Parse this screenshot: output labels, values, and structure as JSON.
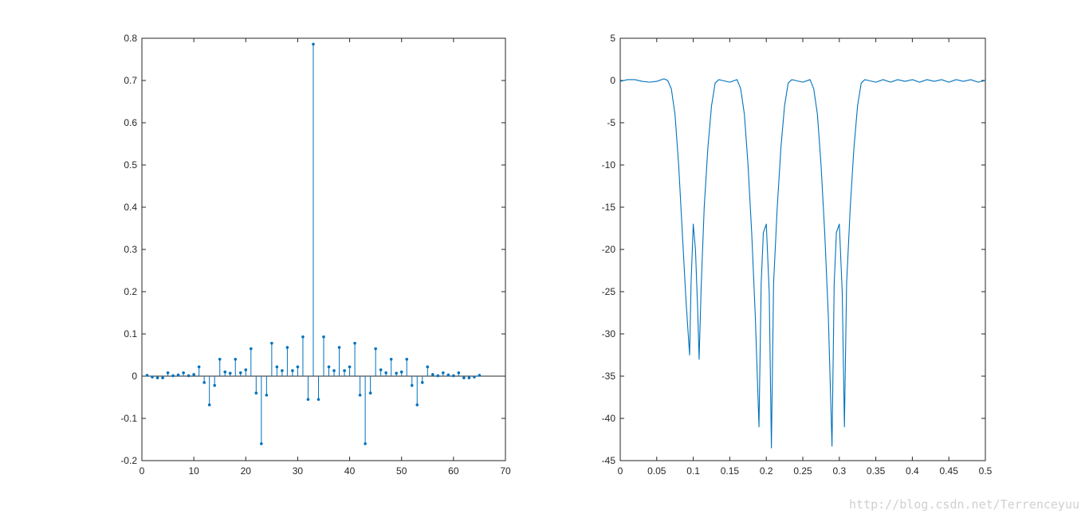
{
  "chart_data": [
    {
      "type": "stem",
      "xlim": [
        0,
        70
      ],
      "ylim": [
        -0.2,
        0.8
      ],
      "x_ticks": [
        0,
        10,
        20,
        30,
        40,
        50,
        60,
        70
      ],
      "y_ticks": [
        -0.2,
        -0.1,
        0,
        0.1,
        0.2,
        0.3,
        0.4,
        0.5,
        0.6,
        0.7,
        0.8
      ],
      "x_tick_labels": [
        "0",
        "10",
        "20",
        "30",
        "40",
        "50",
        "60",
        "70"
      ],
      "y_tick_labels": [
        "-0.2",
        "-0.1",
        "0",
        "0.1",
        "0.2",
        "0.3",
        "0.4",
        "0.5",
        "0.6",
        "0.7",
        "0.8"
      ],
      "color": "#0072BD",
      "grid": false,
      "x": [
        1,
        2,
        3,
        4,
        5,
        6,
        7,
        8,
        9,
        10,
        11,
        12,
        13,
        14,
        15,
        16,
        17,
        18,
        19,
        20,
        21,
        22,
        23,
        24,
        25,
        26,
        27,
        28,
        29,
        30,
        31,
        32,
        33,
        34,
        35,
        36,
        37,
        38,
        39,
        40,
        41,
        42,
        43,
        44,
        45,
        46,
        47,
        48,
        49,
        50,
        51,
        52,
        53,
        54,
        55,
        56,
        57,
        58,
        59,
        60,
        61,
        62,
        63,
        64,
        65
      ],
      "values": [
        0.002,
        -0.002,
        -0.004,
        -0.004,
        0.008,
        0.001,
        0.003,
        0.008,
        0.001,
        0.004,
        0.022,
        -0.015,
        -0.068,
        -0.022,
        0.04,
        0.01,
        0.007,
        0.04,
        0.008,
        0.015,
        0.065,
        -0.04,
        -0.16,
        -0.045,
        0.078,
        0.022,
        0.013,
        0.068,
        0.013,
        0.022,
        0.093,
        -0.055,
        0.786,
        -0.055,
        0.093,
        0.022,
        0.013,
        0.068,
        0.013,
        0.022,
        0.078,
        -0.045,
        -0.16,
        -0.04,
        0.065,
        0.015,
        0.008,
        0.04,
        0.007,
        0.01,
        0.04,
        -0.022,
        -0.068,
        -0.015,
        0.022,
        0.004,
        0.001,
        0.008,
        0.003,
        0.001,
        0.008,
        -0.004,
        -0.004,
        -0.002,
        0.002
      ]
    },
    {
      "type": "line",
      "xlim": [
        0,
        0.5
      ],
      "ylim": [
        -45,
        5
      ],
      "x_ticks": [
        0,
        0.05,
        0.1,
        0.15,
        0.2,
        0.25,
        0.3,
        0.35,
        0.4,
        0.45,
        0.5
      ],
      "y_ticks": [
        -45,
        -40,
        -35,
        -30,
        -25,
        -20,
        -15,
        -10,
        -5,
        0,
        5
      ],
      "x_tick_labels": [
        "0",
        "0.05",
        "0.1",
        "0.15",
        "0.2",
        "0.25",
        "0.3",
        "0.35",
        "0.4",
        "0.45",
        "0.5"
      ],
      "y_tick_labels": [
        "-45",
        "-40",
        "-35",
        "-30",
        "-25",
        "-20",
        "-15",
        "-10",
        "-5",
        "0",
        "5"
      ],
      "color": "#0072BD",
      "grid": false,
      "x": [
        0,
        0.01,
        0.02,
        0.03,
        0.04,
        0.05,
        0.06,
        0.065,
        0.07,
        0.075,
        0.08,
        0.085,
        0.09,
        0.095,
        0.097,
        0.1,
        0.103,
        0.106,
        0.108,
        0.111,
        0.115,
        0.12,
        0.125,
        0.13,
        0.135,
        0.14,
        0.15,
        0.16,
        0.165,
        0.17,
        0.175,
        0.18,
        0.185,
        0.19,
        0.193,
        0.196,
        0.2,
        0.204,
        0.207,
        0.21,
        0.215,
        0.22,
        0.225,
        0.23,
        0.235,
        0.24,
        0.25,
        0.26,
        0.265,
        0.27,
        0.275,
        0.28,
        0.285,
        0.29,
        0.293,
        0.296,
        0.3,
        0.304,
        0.307,
        0.31,
        0.315,
        0.32,
        0.325,
        0.33,
        0.335,
        0.34,
        0.35,
        0.36,
        0.37,
        0.38,
        0.39,
        0.4,
        0.41,
        0.42,
        0.43,
        0.44,
        0.45,
        0.46,
        0.47,
        0.48,
        0.49,
        0.5
      ],
      "y": [
        -0.1,
        0.1,
        0.1,
        -0.1,
        -0.2,
        -0.1,
        0.2,
        0,
        -1,
        -4,
        -10,
        -18,
        -26,
        -32.5,
        -24,
        -17,
        -20,
        -27,
        -33,
        -24,
        -15,
        -8,
        -3,
        -0.3,
        0.1,
        0,
        -0.2,
        0.1,
        -1,
        -4,
        -10,
        -18,
        -28,
        -41,
        -24,
        -18,
        -17,
        -25,
        -43.5,
        -24,
        -15,
        -8,
        -3,
        -0.3,
        0.1,
        0,
        -0.2,
        0.1,
        -1,
        -4,
        -10,
        -18,
        -28,
        -43.3,
        -24,
        -18,
        -17,
        -25,
        -41,
        -24,
        -15,
        -8,
        -3,
        -0.3,
        0.1,
        0,
        -0.2,
        0.1,
        -0.2,
        0.1,
        -0.1,
        0.1,
        -0.2,
        0.1,
        -0.1,
        0.1,
        -0.2,
        0.1,
        -0.1,
        0.1,
        -0.2,
        0
      ]
    }
  ],
  "watermark": "http://blog.csdn.net/Terrenceyuu"
}
